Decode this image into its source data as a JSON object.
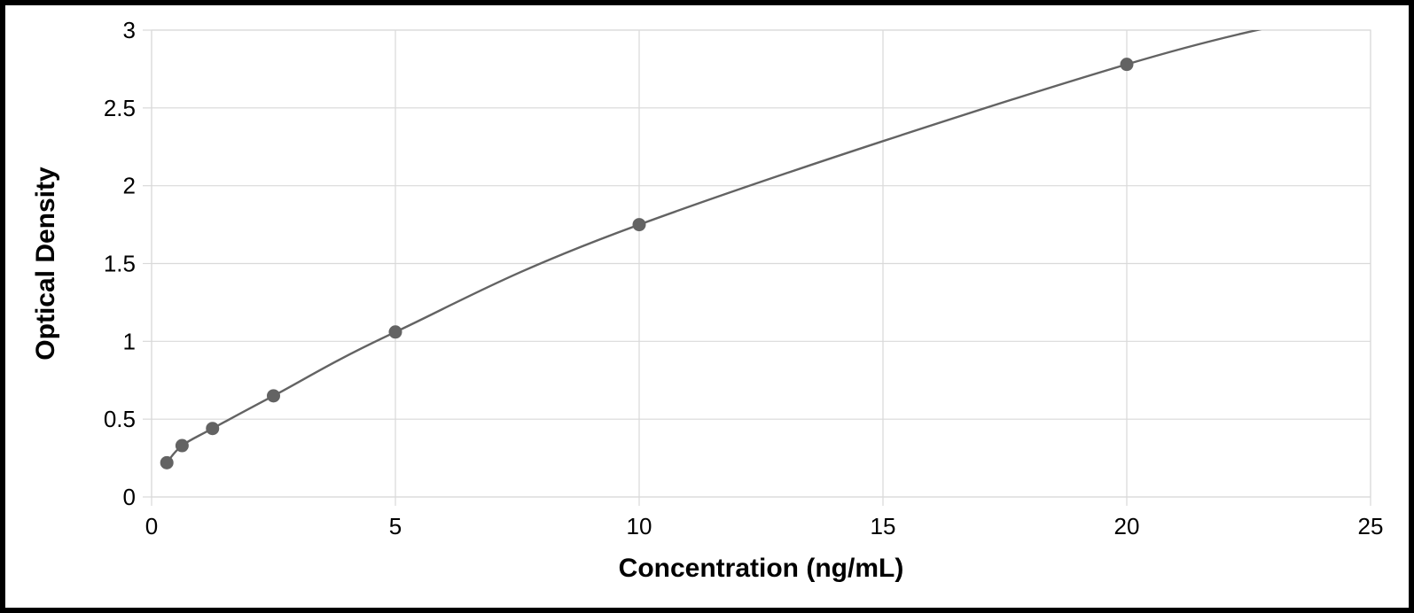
{
  "chart": {
    "type": "line-scatter",
    "xlabel": "Concentration (ng/mL)",
    "ylabel": "Optical Density",
    "xlim": [
      0,
      25
    ],
    "ylim": [
      0,
      3
    ],
    "xtick_step": 5,
    "ytick_step": 0.5,
    "xticks": [
      0,
      5,
      10,
      15,
      20,
      25
    ],
    "yticks": [
      0,
      0.5,
      1,
      1.5,
      2,
      2.5,
      3
    ],
    "label_fontsize": 30,
    "tick_fontsize": 26,
    "background_color": "#ffffff",
    "plot_border_color": "#d9d9d9",
    "grid_color": "#d9d9d9",
    "grid_width": 1.2,
    "line_color": "#636363",
    "line_width": 2.4,
    "marker_color": "#636363",
    "marker_radius": 7,
    "x": [
      0.3125,
      0.625,
      1.25,
      2.5,
      5,
      10,
      20
    ],
    "y": [
      0.22,
      0.33,
      0.44,
      0.65,
      1.06,
      1.75,
      2.78
    ],
    "curve_extra": {
      "x": 25,
      "y": 3.15
    }
  }
}
